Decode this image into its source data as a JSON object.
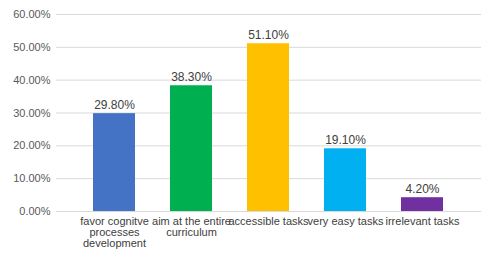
{
  "chart_data": {
    "type": "bar",
    "categories": [
      "favor cognitve processes development",
      "aim at the entire curriculum",
      "accessible tasks",
      "very easy tasks",
      "irrelevant tasks"
    ],
    "values": [
      29.8,
      38.3,
      51.1,
      19.1,
      4.2
    ],
    "value_labels": [
      "29.80%",
      "38.30%",
      "51.10%",
      "19.10%",
      "4.20%"
    ],
    "colors": [
      "#4472c4",
      "#00b050",
      "#ffc000",
      "#00b0f0",
      "#7030a0"
    ],
    "ylim": [
      0,
      60
    ],
    "yticks": [
      {
        "value": 0,
        "label": "0.00%"
      },
      {
        "value": 10,
        "label": "10.00%"
      },
      {
        "value": 20,
        "label": "20.00%"
      },
      {
        "value": 30,
        "label": "30.00%"
      },
      {
        "value": 40,
        "label": "40.00%"
      },
      {
        "value": 50,
        "label": "50.00%"
      },
      {
        "value": 60,
        "label": "60.00%"
      }
    ],
    "grid": true,
    "data_labels": true
  }
}
